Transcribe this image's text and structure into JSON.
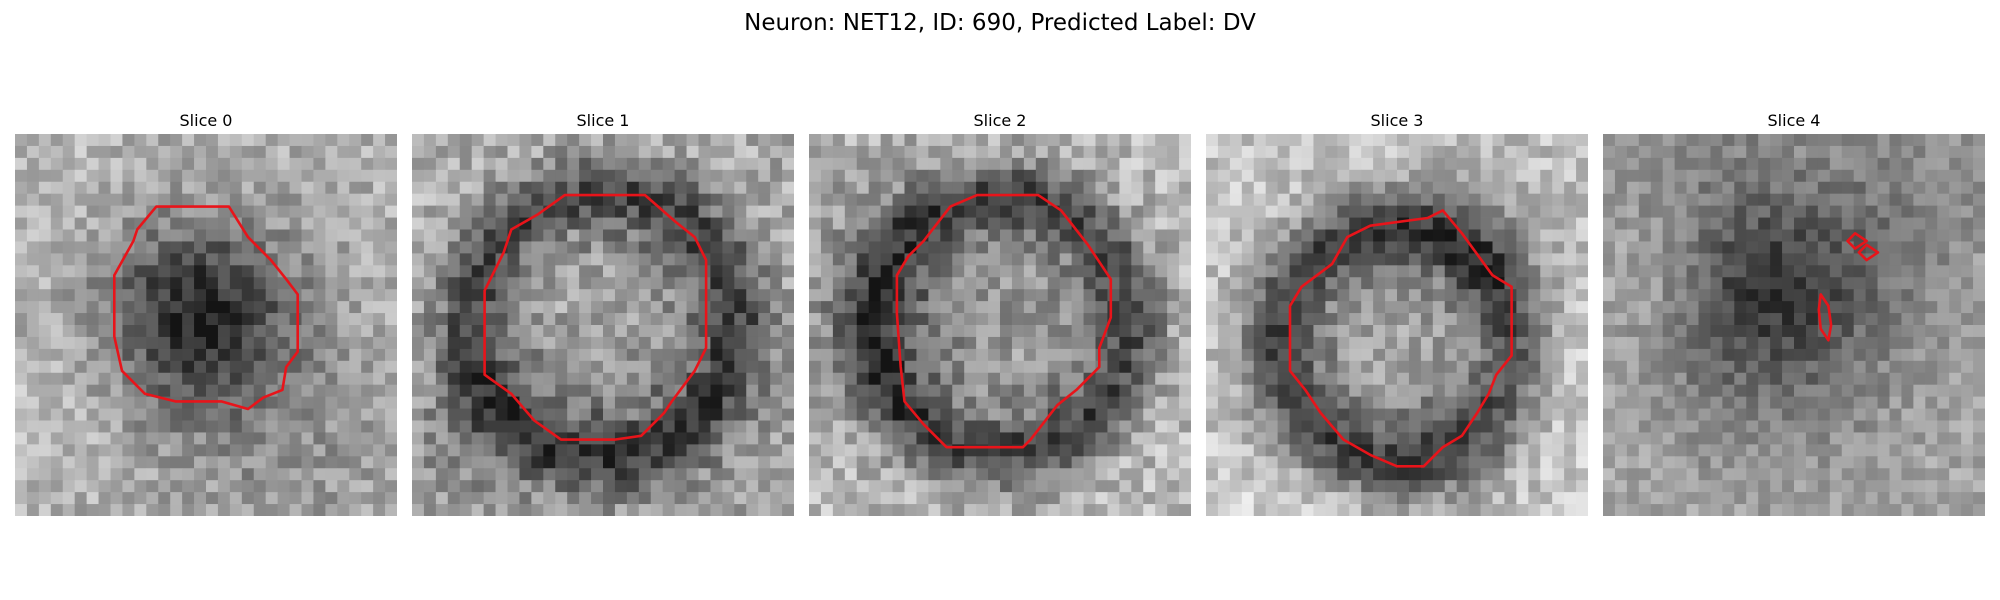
{
  "figure": {
    "title": "Neuron: NET12, ID: 690, Predicted Label: DV"
  },
  "panels": [
    {
      "title": "Slice 0"
    },
    {
      "title": "Slice 1"
    },
    {
      "title": "Slice 2"
    },
    {
      "title": "Slice 3"
    },
    {
      "title": "Slice 4"
    }
  ],
  "style": {
    "contour_color": "#e8141a",
    "colormap": "grayscale"
  }
}
